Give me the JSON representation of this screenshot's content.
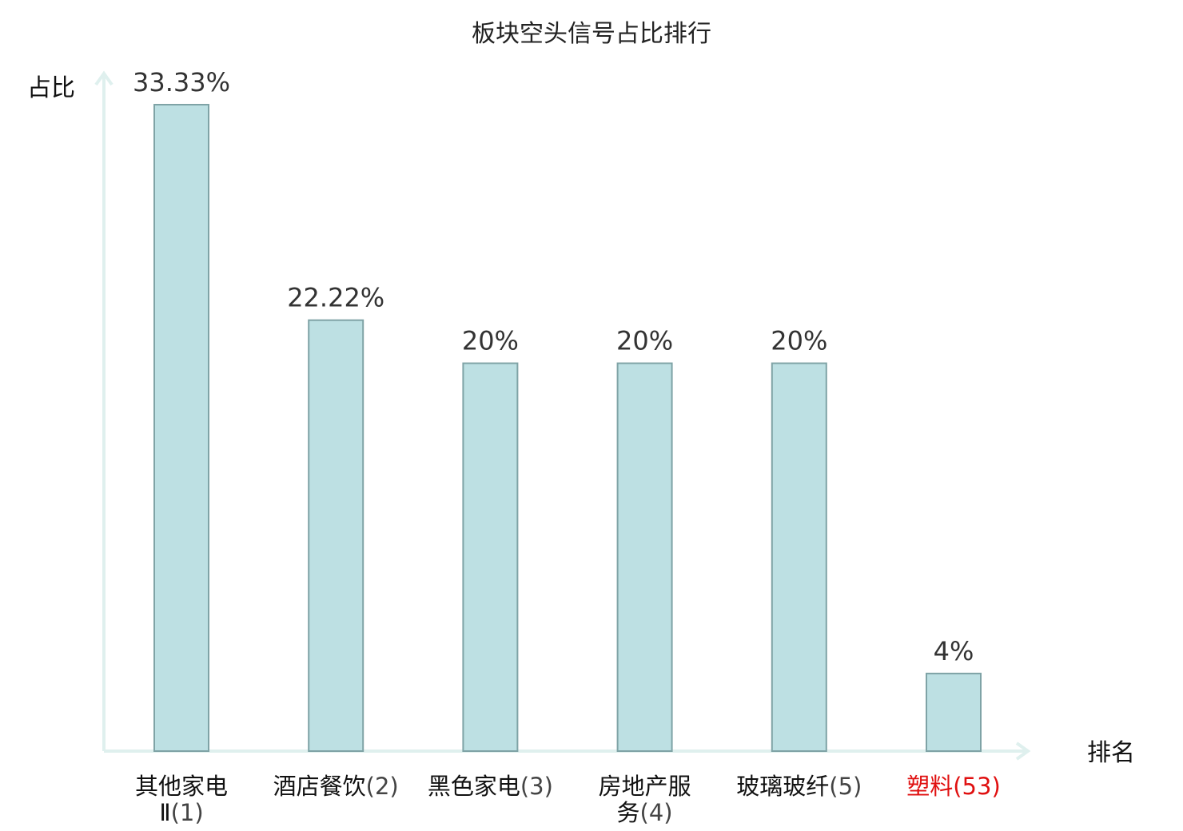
{
  "chart_data": {
    "type": "bar",
    "title": "板块空头信号占比排行",
    "xlabel": "排名",
    "ylabel": "占比",
    "categories": [
      {
        "name": "其他家电Ⅱ",
        "rank": "(1)",
        "highlight": false
      },
      {
        "name": "酒店餐饮",
        "rank": "(2)",
        "highlight": false
      },
      {
        "name": "黑色家电",
        "rank": "(3)",
        "highlight": false
      },
      {
        "name": "房地产服务",
        "rank": "(4)",
        "highlight": false
      },
      {
        "name": "玻璃玻纤",
        "rank": "(5)",
        "highlight": false
      },
      {
        "name": "塑料",
        "rank": "(53)",
        "highlight": true
      }
    ],
    "values": [
      33.33,
      22.22,
      20,
      20,
      20,
      4
    ],
    "value_labels": [
      "33.33%",
      "22.22%",
      "20%",
      "20%",
      "20%",
      "4%"
    ],
    "ylim": [
      0,
      33.33
    ],
    "grid": false,
    "legend": "none",
    "colors": {
      "bar_fill": "#bde0e3",
      "bar_stroke": "#7fa3a6",
      "axis": "#dff0ee",
      "highlight_label": "#e01010"
    }
  }
}
